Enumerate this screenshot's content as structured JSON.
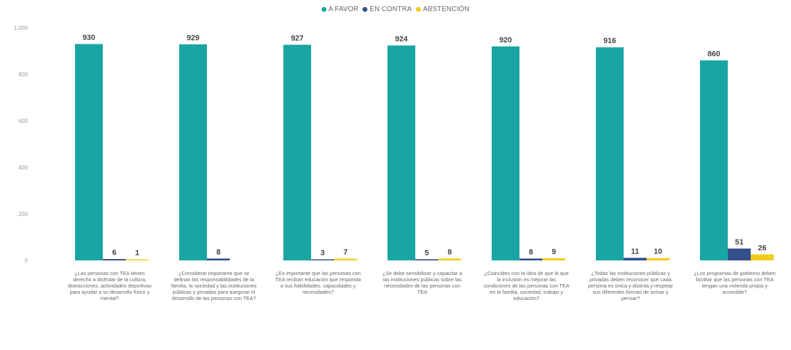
{
  "chart_data": {
    "type": "bar",
    "ylim": [
      0,
      1000
    ],
    "yticks": [
      0,
      200,
      400,
      600,
      800,
      1000
    ],
    "ytick_labels": [
      "0",
      "200",
      "400",
      "600",
      "800",
      "1.000"
    ],
    "legend_position": "top-center",
    "grid": false,
    "series": [
      {
        "name": "A FAVOR",
        "color": "#1aa5a5",
        "values": [
          930,
          929,
          927,
          924,
          920,
          916,
          860
        ]
      },
      {
        "name": "EN CONTRA",
        "color": "#33508c",
        "values": [
          6,
          8,
          3,
          5,
          8,
          11,
          51
        ]
      },
      {
        "name": "ABSTENCIÓN",
        "color": "#f2cc1a",
        "values": [
          1,
          null,
          7,
          8,
          9,
          10,
          26
        ]
      }
    ],
    "categories": [
      "¿Las personas con TEA tienen derecho a disfrutar de la cultura, distracciones, actividades deportivas para ayudar a su desarrollo físico y mental?",
      "¿Considerar importante que se definan las responsabilidades de la familia, la sociedad y las instituciones públicas y privadas para asegurar el desarrollo de las personas con TEA?",
      "¿Es importante que las personas con TEA reciban educación que responda a sus habilidades, capacidades y necesidades?",
      "¿Se debe sensibilizar y capacitar a las instituciones públicas sobre las necesidades de las personas con TEA",
      "¿Coincides con la idea de que la que la inclusión es mejorar las condiciones de las personas con TEA en la familia, sociedad, trabajo y educación?",
      "¿Todas las instituciones públicas y privadas deben reconocer que cada persona es única y distinta y respetar sus diferentes formas de actuar y pensar?",
      "¿Los programas de gobierno deben facilitar que las personas con TEA tengan una vivienda propia y accesible?"
    ]
  }
}
